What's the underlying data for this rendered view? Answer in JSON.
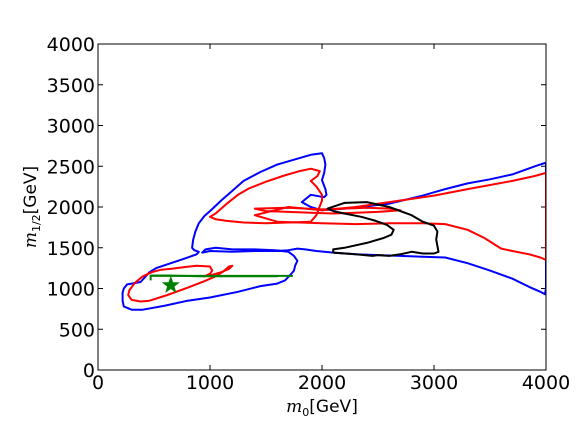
{
  "chart_data": {
    "type": "line",
    "xlabel_var": "m",
    "xlabel_sub": "0",
    "xlabel_unit": "[GeV]",
    "ylabel_var": "m",
    "ylabel_sub": "1/2",
    "ylabel_unit": "[GeV]",
    "xlim": [
      0,
      4000
    ],
    "ylim": [
      0,
      4000
    ],
    "xticks": [
      0,
      1000,
      2000,
      3000,
      4000
    ],
    "yticks": [
      0,
      500,
      1000,
      1500,
      2000,
      2500,
      3000,
      3500,
      4000
    ],
    "xtick_labels": [
      "0",
      "1000",
      "2000",
      "3000",
      "4000"
    ],
    "ytick_labels": [
      "0",
      "500",
      "1000",
      "1500",
      "2000",
      "2500",
      "3000",
      "3500",
      "4000"
    ],
    "grid": false,
    "series": [
      {
        "color": "#0000ff",
        "closed": true,
        "points": [
          [
            230,
            1000
          ],
          [
            260,
            1050
          ],
          [
            300,
            1060
          ],
          [
            380,
            1080
          ],
          [
            460,
            1200
          ],
          [
            520,
            1250
          ],
          [
            650,
            1310
          ],
          [
            780,
            1370
          ],
          [
            880,
            1420
          ],
          [
            900,
            1450
          ],
          [
            860,
            1470
          ],
          [
            840,
            1500
          ],
          [
            850,
            1600
          ],
          [
            870,
            1700
          ],
          [
            900,
            1800
          ],
          [
            950,
            1890
          ],
          [
            1000,
            1950
          ],
          [
            1100,
            2080
          ],
          [
            1200,
            2200
          ],
          [
            1300,
            2320
          ],
          [
            1450,
            2430
          ],
          [
            1600,
            2520
          ],
          [
            1750,
            2580
          ],
          [
            1900,
            2640
          ],
          [
            2000,
            2660
          ],
          [
            2020,
            2600
          ],
          [
            2030,
            2520
          ],
          [
            2020,
            2420
          ],
          [
            2000,
            2330
          ],
          [
            2030,
            2220
          ],
          [
            2040,
            2150
          ],
          [
            2020,
            2120
          ],
          [
            1900,
            2150
          ],
          [
            1820,
            2060
          ],
          [
            1900,
            2000
          ],
          [
            2000,
            1960
          ],
          [
            2200,
            1980
          ],
          [
            2400,
            2010
          ],
          [
            2600,
            2040
          ],
          [
            2900,
            2140
          ],
          [
            3100,
            2220
          ],
          [
            3300,
            2290
          ],
          [
            3500,
            2340
          ],
          [
            3700,
            2400
          ],
          [
            3900,
            2500
          ],
          [
            3990,
            2540
          ],
          [
            4000,
            2530
          ],
          [
            4000,
            1000
          ],
          [
            3990,
            930
          ],
          [
            3950,
            960
          ],
          [
            3850,
            1020
          ],
          [
            3700,
            1120
          ],
          [
            3500,
            1220
          ],
          [
            3300,
            1310
          ],
          [
            3100,
            1380
          ],
          [
            2900,
            1390
          ],
          [
            2700,
            1400
          ],
          [
            2500,
            1410
          ],
          [
            2300,
            1420
          ],
          [
            2100,
            1440
          ],
          [
            1950,
            1460
          ],
          [
            1850,
            1480
          ],
          [
            1780,
            1490
          ],
          [
            1700,
            1470
          ],
          [
            1600,
            1460
          ],
          [
            1400,
            1460
          ],
          [
            1200,
            1450
          ],
          [
            1000,
            1460
          ],
          [
            930,
            1440
          ],
          [
            960,
            1480
          ],
          [
            1050,
            1500
          ],
          [
            1200,
            1480
          ],
          [
            1400,
            1480
          ],
          [
            1580,
            1470
          ],
          [
            1700,
            1450
          ],
          [
            1750,
            1400
          ],
          [
            1780,
            1340
          ],
          [
            1760,
            1280
          ],
          [
            1750,
            1220
          ],
          [
            1720,
            1170
          ],
          [
            1670,
            1100
          ],
          [
            1600,
            1060
          ],
          [
            1450,
            1030
          ],
          [
            1250,
            960
          ],
          [
            1000,
            890
          ],
          [
            800,
            850
          ],
          [
            600,
            790
          ],
          [
            400,
            740
          ],
          [
            300,
            740
          ],
          [
            230,
            780
          ],
          [
            220,
            850
          ],
          [
            220,
            950
          ]
        ]
      },
      {
        "color": "#ff0000",
        "closed": true,
        "points": [
          [
            270,
            920
          ],
          [
            280,
            980
          ],
          [
            330,
            1070
          ],
          [
            400,
            1150
          ],
          [
            480,
            1200
          ],
          [
            560,
            1230
          ],
          [
            650,
            1240
          ],
          [
            760,
            1260
          ],
          [
            880,
            1280
          ],
          [
            1000,
            1270
          ],
          [
            1020,
            1220
          ],
          [
            1000,
            1180
          ],
          [
            950,
            1150
          ],
          [
            1000,
            1160
          ],
          [
            1100,
            1200
          ],
          [
            1170,
            1240
          ],
          [
            1200,
            1280
          ],
          [
            1170,
            1270
          ],
          [
            1120,
            1210
          ],
          [
            1050,
            1150
          ],
          [
            950,
            1090
          ],
          [
            800,
            1010
          ],
          [
            620,
            920
          ],
          [
            460,
            850
          ],
          [
            380,
            840
          ],
          [
            300,
            860
          ]
        ]
      },
      {
        "color": "#ff0000",
        "closed": true,
        "points": [
          [
            1000,
            1880
          ],
          [
            1050,
            1920
          ],
          [
            1150,
            2040
          ],
          [
            1250,
            2150
          ],
          [
            1350,
            2230
          ],
          [
            1500,
            2310
          ],
          [
            1650,
            2380
          ],
          [
            1800,
            2440
          ],
          [
            1900,
            2470
          ],
          [
            1980,
            2440
          ],
          [
            1960,
            2380
          ],
          [
            1900,
            2320
          ],
          [
            1950,
            2250
          ],
          [
            2000,
            2150
          ],
          [
            2000,
            2080
          ],
          [
            1950,
            1900
          ],
          [
            1900,
            1820
          ],
          [
            1700,
            1810
          ],
          [
            1500,
            1800
          ],
          [
            1300,
            1810
          ],
          [
            1150,
            1830
          ],
          [
            1050,
            1850
          ]
        ]
      },
      {
        "color": "#ff0000",
        "closed": true,
        "points": [
          [
            1400,
            1900
          ],
          [
            1700,
            2000
          ],
          [
            2000,
            1960
          ],
          [
            2300,
            2000
          ],
          [
            2600,
            2060
          ],
          [
            3000,
            2140
          ],
          [
            3300,
            2220
          ],
          [
            3500,
            2270
          ],
          [
            3700,
            2320
          ],
          [
            3900,
            2380
          ],
          [
            4000,
            2420
          ],
          [
            4000,
            1350
          ],
          [
            3950,
            1380
          ],
          [
            3850,
            1420
          ],
          [
            3700,
            1460
          ],
          [
            3600,
            1490
          ],
          [
            3450,
            1620
          ],
          [
            3300,
            1720
          ],
          [
            3100,
            1790
          ],
          [
            2900,
            1800
          ],
          [
            2600,
            1800
          ],
          [
            2300,
            1790
          ],
          [
            2000,
            1800
          ],
          [
            1800,
            1810
          ],
          [
            1600,
            1820
          ]
        ]
      },
      {
        "color": "#ff0000",
        "closed": true,
        "points": [
          [
            1400,
            1980
          ],
          [
            1700,
            1990
          ],
          [
            2000,
            1970
          ],
          [
            2200,
            1980
          ],
          [
            2400,
            1990
          ],
          [
            2600,
            1980
          ],
          [
            2700,
            1960
          ],
          [
            2500,
            1940
          ],
          [
            2300,
            1930
          ],
          [
            2100,
            1920
          ],
          [
            1900,
            1930
          ],
          [
            1700,
            1940
          ],
          [
            1500,
            1950
          ]
        ]
      },
      {
        "color": "#000000",
        "closed": true,
        "points": [
          [
            2050,
            1980
          ],
          [
            2200,
            2050
          ],
          [
            2400,
            2060
          ],
          [
            2600,
            2000
          ],
          [
            2800,
            1900
          ],
          [
            2900,
            1820
          ],
          [
            3000,
            1770
          ],
          [
            3030,
            1700
          ],
          [
            3020,
            1600
          ],
          [
            3040,
            1450
          ],
          [
            3000,
            1430
          ],
          [
            2900,
            1430
          ],
          [
            2800,
            1450
          ],
          [
            2700,
            1420
          ],
          [
            2600,
            1400
          ],
          [
            2500,
            1410
          ],
          [
            2450,
            1400
          ],
          [
            2300,
            1420
          ],
          [
            2100,
            1440
          ],
          [
            2100,
            1480
          ],
          [
            2200,
            1500
          ],
          [
            2400,
            1560
          ],
          [
            2550,
            1620
          ],
          [
            2620,
            1660
          ],
          [
            2640,
            1720
          ],
          [
            2580,
            1780
          ],
          [
            2480,
            1830
          ],
          [
            2350,
            1880
          ],
          [
            2200,
            1920
          ],
          [
            2100,
            1950
          ]
        ]
      },
      {
        "color": "#008000",
        "closed": false,
        "points": [
          [
            470,
            1160
          ],
          [
            630,
            1160
          ],
          [
            900,
            1150
          ],
          [
            1200,
            1150
          ],
          [
            1500,
            1150
          ],
          [
            1600,
            1150
          ],
          [
            1590,
            1150
          ]
        ]
      },
      {
        "color": "#008000",
        "closed": false,
        "points": [
          [
            1590,
            1150
          ],
          [
            1580,
            1150
          ]
        ]
      }
    ],
    "markers": [
      {
        "shape": "star",
        "color": "#008000",
        "x": 650,
        "y": 1040
      }
    ],
    "green_segment": {
      "color": "#008000",
      "x0": 470,
      "x1": 1740,
      "y": 1155,
      "left_y": 1100
    }
  }
}
